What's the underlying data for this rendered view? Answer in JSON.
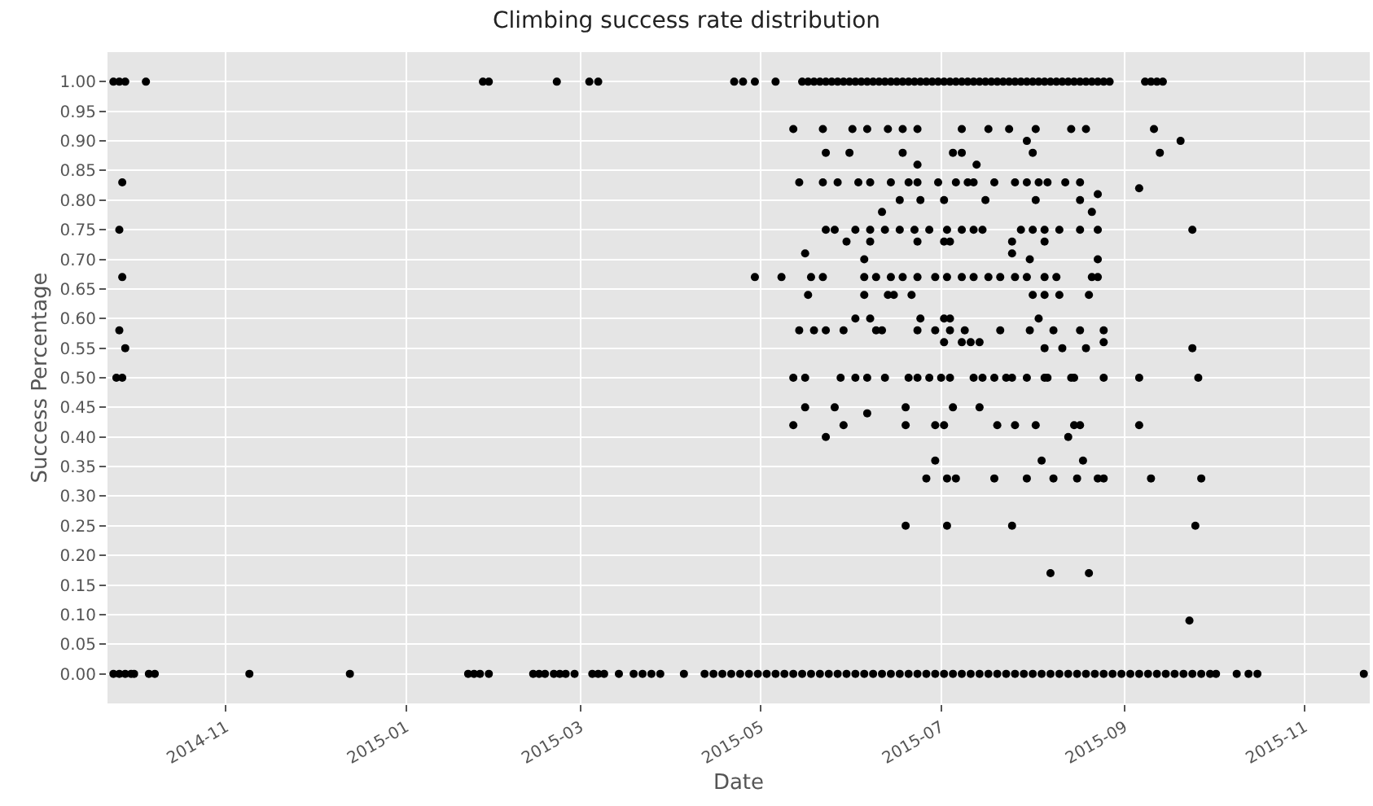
{
  "chart_data": {
    "type": "scatter",
    "title": "Climbing success rate distribution",
    "xlabel": "Date",
    "ylabel": "Success Percentage",
    "xlim": [
      "2014-09-22",
      "2015-11-23"
    ],
    "ylim": [
      -0.05,
      1.05
    ],
    "xticks": [
      {
        "value": "2014-11-01",
        "label": "2014-11"
      },
      {
        "value": "2015-01-01",
        "label": "2015-01"
      },
      {
        "value": "2015-03-01",
        "label": "2015-03"
      },
      {
        "value": "2015-05-01",
        "label": "2015-05"
      },
      {
        "value": "2015-07-01",
        "label": "2015-07"
      },
      {
        "value": "2015-09-01",
        "label": "2015-09"
      },
      {
        "value": "2015-11-01",
        "label": "2015-11"
      }
    ],
    "yticks": [
      {
        "value": 0,
        "label": "0.00"
      },
      {
        "value": 0.05,
        "label": "0.05"
      },
      {
        "value": 0.1,
        "label": "0.10"
      },
      {
        "value": 0.15,
        "label": "0.15"
      },
      {
        "value": 0.2,
        "label": "0.20"
      },
      {
        "value": 0.25,
        "label": "0.25"
      },
      {
        "value": 0.3,
        "label": "0.30"
      },
      {
        "value": 0.35,
        "label": "0.35"
      },
      {
        "value": 0.4,
        "label": "0.40"
      },
      {
        "value": 0.45,
        "label": "0.45"
      },
      {
        "value": 0.5,
        "label": "0.50"
      },
      {
        "value": 0.55,
        "label": "0.55"
      },
      {
        "value": 0.6,
        "label": "0.60"
      },
      {
        "value": 0.65,
        "label": "0.65"
      },
      {
        "value": 0.7,
        "label": "0.70"
      },
      {
        "value": 0.75,
        "label": "0.75"
      },
      {
        "value": 0.8,
        "label": "0.80"
      },
      {
        "value": 0.85,
        "label": "0.85"
      },
      {
        "value": 0.9,
        "label": "0.90"
      },
      {
        "value": 0.95,
        "label": "0.95"
      },
      {
        "value": 1,
        "label": "1.00"
      }
    ],
    "grid": true,
    "marker": "circle",
    "series": [
      {
        "color": "#000000",
        "x": [
          "2014-09-24",
          "2014-09-26",
          "2014-09-28",
          "2014-10-05",
          "2015-01-27",
          "2015-01-29",
          "2015-02-21",
          "2015-03-04",
          "2015-03-07",
          "2015-04-22",
          "2015-04-25",
          "2015-04-29",
          "2015-05-06",
          "2015-05-15",
          "2015-05-17",
          "2015-05-19",
          "2015-05-21",
          "2015-05-23",
          "2015-05-25",
          "2015-05-27",
          "2015-05-29",
          "2015-05-31",
          "2015-06-02",
          "2015-06-04",
          "2015-06-06",
          "2015-06-08",
          "2015-06-10",
          "2015-06-12",
          "2015-06-14",
          "2015-06-16",
          "2015-06-18",
          "2015-06-20",
          "2015-06-22",
          "2015-06-24",
          "2015-06-26",
          "2015-06-28",
          "2015-06-30",
          "2015-07-02",
          "2015-07-04",
          "2015-07-06",
          "2015-07-08",
          "2015-07-10",
          "2015-07-12",
          "2015-07-14",
          "2015-07-16",
          "2015-07-18",
          "2015-07-20",
          "2015-07-22",
          "2015-07-24",
          "2015-07-26",
          "2015-07-28",
          "2015-07-30",
          "2015-08-01",
          "2015-08-03",
          "2015-08-05",
          "2015-08-07",
          "2015-08-09",
          "2015-08-11",
          "2015-08-13",
          "2015-08-15",
          "2015-08-17",
          "2015-08-19",
          "2015-08-21",
          "2015-08-23",
          "2015-08-25",
          "2015-08-27",
          "2015-09-08",
          "2015-09-10",
          "2015-09-12",
          "2015-09-14",
          "2014-09-24",
          "2014-09-26",
          "2014-09-28",
          "2014-09-30",
          "2014-10-01",
          "2014-10-06",
          "2014-10-08",
          "2014-11-09",
          "2014-12-13",
          "2015-01-22",
          "2015-01-24",
          "2015-01-26",
          "2015-01-29",
          "2015-02-13",
          "2015-02-15",
          "2015-02-17",
          "2015-02-20",
          "2015-02-22",
          "2015-02-24",
          "2015-02-27",
          "2015-03-05",
          "2015-03-07",
          "2015-03-09",
          "2015-03-14",
          "2015-03-19",
          "2015-03-22",
          "2015-03-25",
          "2015-03-28",
          "2015-04-05",
          "2015-04-12",
          "2015-04-15",
          "2015-04-18",
          "2015-04-21",
          "2015-04-24",
          "2015-04-27",
          "2015-04-30",
          "2015-05-03",
          "2015-05-06",
          "2015-05-09",
          "2015-05-12",
          "2015-05-15",
          "2015-05-18",
          "2015-05-21",
          "2015-05-24",
          "2015-05-27",
          "2015-05-30",
          "2015-06-02",
          "2015-06-05",
          "2015-06-08",
          "2015-06-11",
          "2015-06-14",
          "2015-06-17",
          "2015-06-20",
          "2015-06-23",
          "2015-06-26",
          "2015-06-29",
          "2015-07-02",
          "2015-07-05",
          "2015-07-08",
          "2015-07-11",
          "2015-07-14",
          "2015-07-17",
          "2015-07-20",
          "2015-07-23",
          "2015-07-26",
          "2015-07-29",
          "2015-08-01",
          "2015-08-04",
          "2015-08-07",
          "2015-08-10",
          "2015-08-13",
          "2015-08-16",
          "2015-08-19",
          "2015-08-22",
          "2015-08-25",
          "2015-08-28",
          "2015-08-31",
          "2015-09-03",
          "2015-09-06",
          "2015-09-09",
          "2015-09-12",
          "2015-09-15",
          "2015-09-18",
          "2015-09-21",
          "2015-09-24",
          "2015-09-27",
          "2015-09-30",
          "2015-10-02",
          "2015-10-09",
          "2015-10-13",
          "2015-10-16",
          "2015-11-21",
          "2014-09-27",
          "2014-09-26",
          "2014-09-27",
          "2014-09-26",
          "2014-09-28",
          "2014-09-25",
          "2014-09-27",
          "2015-05-12",
          "2015-05-22",
          "2015-06-01",
          "2015-06-06",
          "2015-06-13",
          "2015-06-18",
          "2015-06-23",
          "2015-07-08",
          "2015-07-17",
          "2015-07-24",
          "2015-08-02",
          "2015-08-14",
          "2015-08-19",
          "2015-09-11",
          "2015-07-30",
          "2015-09-20",
          "2015-05-23",
          "2015-05-31",
          "2015-06-18",
          "2015-07-05",
          "2015-07-08",
          "2015-08-01",
          "2015-09-13",
          "2015-06-23",
          "2015-07-13",
          "2015-05-14",
          "2015-05-22",
          "2015-05-27",
          "2015-06-03",
          "2015-06-07",
          "2015-06-14",
          "2015-06-20",
          "2015-06-23",
          "2015-06-30",
          "2015-07-06",
          "2015-07-10",
          "2015-07-12",
          "2015-07-19",
          "2015-07-26",
          "2015-07-30",
          "2015-08-03",
          "2015-08-06",
          "2015-08-12",
          "2015-08-17",
          "2015-08-23",
          "2015-09-06",
          "2015-06-17",
          "2015-06-24",
          "2015-07-02",
          "2015-07-16",
          "2015-08-02",
          "2015-08-17",
          "2015-06-11",
          "2015-08-21",
          "2015-05-23",
          "2015-05-26",
          "2015-06-02",
          "2015-06-07",
          "2015-06-12",
          "2015-06-17",
          "2015-06-22",
          "2015-06-27",
          "2015-07-03",
          "2015-07-08",
          "2015-07-12",
          "2015-07-15",
          "2015-07-28",
          "2015-08-01",
          "2015-08-05",
          "2015-08-10",
          "2015-08-17",
          "2015-08-23",
          "2015-09-24",
          "2015-05-30",
          "2015-06-07",
          "2015-06-23",
          "2015-07-02",
          "2015-07-04",
          "2015-07-25",
          "2015-08-05",
          "2015-05-16",
          "2015-07-25",
          "2015-06-05",
          "2015-07-31",
          "2015-08-23",
          "2015-04-29",
          "2015-05-08",
          "2015-05-18",
          "2015-05-22",
          "2015-06-05",
          "2015-06-09",
          "2015-06-14",
          "2015-06-18",
          "2015-06-23",
          "2015-06-29",
          "2015-07-03",
          "2015-07-08",
          "2015-07-12",
          "2015-07-17",
          "2015-07-21",
          "2015-07-26",
          "2015-07-30",
          "2015-08-05",
          "2015-08-09",
          "2015-08-21",
          "2015-08-23",
          "2015-05-17",
          "2015-06-05",
          "2015-06-13",
          "2015-06-15",
          "2015-06-21",
          "2015-08-01",
          "2015-08-05",
          "2015-08-10",
          "2015-08-20",
          "2015-06-02",
          "2015-06-07",
          "2015-06-24",
          "2015-07-02",
          "2015-07-04",
          "2015-08-03",
          "2015-05-14",
          "2015-05-19",
          "2015-05-23",
          "2015-05-29",
          "2015-06-09",
          "2015-06-11",
          "2015-06-23",
          "2015-06-29",
          "2015-07-04",
          "2015-07-09",
          "2015-07-21",
          "2015-07-31",
          "2015-08-08",
          "2015-08-17",
          "2015-08-25",
          "2015-07-02",
          "2015-07-08",
          "2015-07-11",
          "2015-07-14",
          "2015-08-25",
          "2015-08-05",
          "2015-08-11",
          "2015-08-19",
          "2015-09-24",
          "2015-05-12",
          "2015-05-16",
          "2015-05-28",
          "2015-06-02",
          "2015-06-06",
          "2015-06-12",
          "2015-06-20",
          "2015-06-23",
          "2015-06-27",
          "2015-07-01",
          "2015-07-04",
          "2015-07-12",
          "2015-07-15",
          "2015-07-19",
          "2015-07-23",
          "2015-07-25",
          "2015-07-30",
          "2015-08-05",
          "2015-08-06",
          "2015-08-14",
          "2015-08-15",
          "2015-08-25",
          "2015-09-06",
          "2015-09-26",
          "2015-05-16",
          "2015-05-26",
          "2015-06-19",
          "2015-07-05",
          "2015-07-14",
          "2015-06-06",
          "2015-05-12",
          "2015-05-29",
          "2015-06-19",
          "2015-06-29",
          "2015-07-02",
          "2015-07-20",
          "2015-07-26",
          "2015-08-02",
          "2015-08-15",
          "2015-08-17",
          "2015-09-06",
          "2015-05-23",
          "2015-08-13",
          "2015-06-29",
          "2015-08-04",
          "2015-08-18",
          "2015-06-26",
          "2015-07-03",
          "2015-07-06",
          "2015-07-19",
          "2015-07-30",
          "2015-08-08",
          "2015-08-16",
          "2015-08-23",
          "2015-08-25",
          "2015-09-10",
          "2015-09-27",
          "2015-06-19",
          "2015-07-03",
          "2015-07-25",
          "2015-09-25",
          "2015-08-07",
          "2015-08-20",
          "2015-09-23"
        ],
        "values": [
          1,
          1,
          1,
          1,
          1,
          1,
          1,
          1,
          1,
          1,
          1,
          1,
          1,
          1,
          1,
          1,
          1,
          1,
          1,
          1,
          1,
          1,
          1,
          1,
          1,
          1,
          1,
          1,
          1,
          1,
          1,
          1,
          1,
          1,
          1,
          1,
          1,
          1,
          1,
          1,
          1,
          1,
          1,
          1,
          1,
          1,
          1,
          1,
          1,
          1,
          1,
          1,
          1,
          1,
          1,
          1,
          1,
          1,
          1,
          1,
          1,
          1,
          1,
          1,
          1,
          1,
          1,
          1,
          1,
          1,
          0,
          0,
          0,
          0,
          0,
          0,
          0,
          0,
          0,
          0,
          0,
          0,
          0,
          0,
          0,
          0,
          0,
          0,
          0,
          0,
          0,
          0,
          0,
          0,
          0,
          0,
          0,
          0,
          0,
          0,
          0,
          0,
          0,
          0,
          0,
          0,
          0,
          0,
          0,
          0,
          0,
          0,
          0,
          0,
          0,
          0,
          0,
          0,
          0,
          0,
          0,
          0,
          0,
          0,
          0,
          0,
          0,
          0,
          0,
          0,
          0,
          0,
          0,
          0,
          0,
          0,
          0,
          0,
          0,
          0,
          0,
          0,
          0,
          0,
          0,
          0,
          0,
          0,
          0,
          0,
          0,
          0,
          0,
          0,
          0,
          0,
          0,
          0,
          0,
          0,
          0,
          0,
          0.83,
          0.75,
          0.67,
          0.58,
          0.55,
          0.5,
          0.5,
          0.92,
          0.92,
          0.92,
          0.92,
          0.92,
          0.92,
          0.92,
          0.92,
          0.92,
          0.92,
          0.92,
          0.92,
          0.92,
          0.92,
          0.9,
          0.9,
          0.88,
          0.88,
          0.88,
          0.88,
          0.88,
          0.88,
          0.88,
          0.86,
          0.86,
          0.83,
          0.83,
          0.83,
          0.83,
          0.83,
          0.83,
          0.83,
          0.83,
          0.83,
          0.83,
          0.83,
          0.83,
          0.83,
          0.83,
          0.83,
          0.83,
          0.83,
          0.83,
          0.83,
          0.81,
          0.82,
          0.8,
          0.8,
          0.8,
          0.8,
          0.8,
          0.8,
          0.78,
          0.78,
          0.75,
          0.75,
          0.75,
          0.75,
          0.75,
          0.75,
          0.75,
          0.75,
          0.75,
          0.75,
          0.75,
          0.75,
          0.75,
          0.75,
          0.75,
          0.75,
          0.75,
          0.75,
          0.75,
          0.73,
          0.73,
          0.73,
          0.73,
          0.73,
          0.73,
          0.73,
          0.71,
          0.71,
          0.7,
          0.7,
          0.7,
          0.67,
          0.67,
          0.67,
          0.67,
          0.67,
          0.67,
          0.67,
          0.67,
          0.67,
          0.67,
          0.67,
          0.67,
          0.67,
          0.67,
          0.67,
          0.67,
          0.67,
          0.67,
          0.67,
          0.67,
          0.67,
          0.64,
          0.64,
          0.64,
          0.64,
          0.64,
          0.64,
          0.64,
          0.64,
          0.64,
          0.6,
          0.6,
          0.6,
          0.6,
          0.6,
          0.6,
          0.58,
          0.58,
          0.58,
          0.58,
          0.58,
          0.58,
          0.58,
          0.58,
          0.58,
          0.58,
          0.58,
          0.58,
          0.58,
          0.58,
          0.58,
          0.56,
          0.56,
          0.56,
          0.56,
          0.56,
          0.55,
          0.55,
          0.55,
          0.55,
          0.5,
          0.5,
          0.5,
          0.5,
          0.5,
          0.5,
          0.5,
          0.5,
          0.5,
          0.5,
          0.5,
          0.5,
          0.5,
          0.5,
          0.5,
          0.5,
          0.5,
          0.5,
          0.5,
          0.5,
          0.5,
          0.5,
          0.5,
          0.5,
          0.45,
          0.45,
          0.45,
          0.45,
          0.45,
          0.44,
          0.42,
          0.42,
          0.42,
          0.42,
          0.42,
          0.42,
          0.42,
          0.42,
          0.42,
          0.42,
          0.42,
          0.4,
          0.4,
          0.36,
          0.36,
          0.36,
          0.33,
          0.33,
          0.33,
          0.33,
          0.33,
          0.33,
          0.33,
          0.33,
          0.33,
          0.33,
          0.33,
          0.25,
          0.25,
          0.25,
          0.25,
          0.17,
          0.17,
          0.09
        ]
      }
    ]
  }
}
